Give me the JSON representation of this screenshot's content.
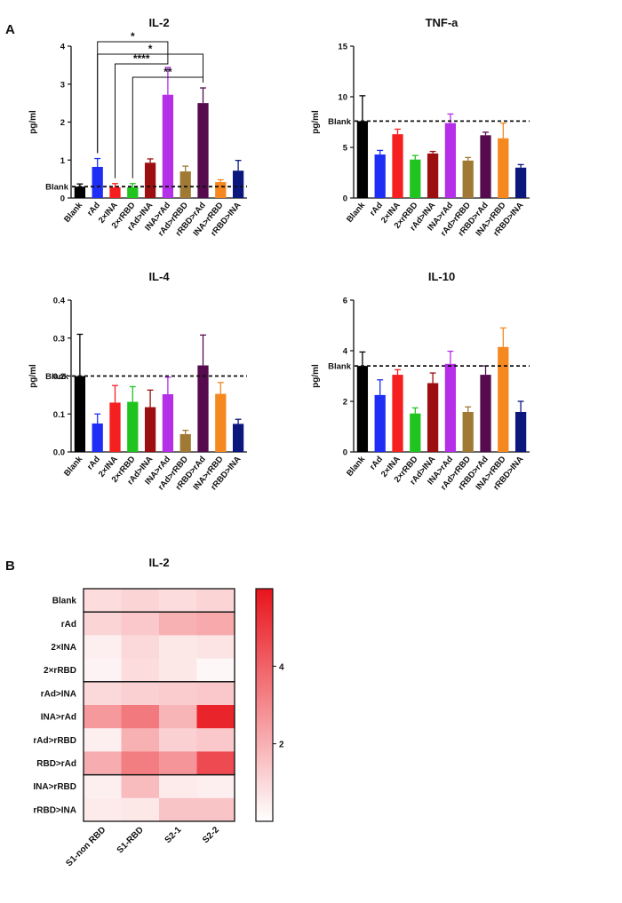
{
  "panel_a_label": "A",
  "panel_b_label": "B",
  "colors": {
    "blank": "#000000",
    "rAd": "#1f2ef5",
    "2xINA": "#f51f1f",
    "2xrRBD": "#1fc41f",
    "rAd>INA": "#9c0e10",
    "INA>rAd": "#b52ee8",
    "rAd>rRBD": "#a07a35",
    "rRBD>rAd": "#560b4f",
    "INA>rRBD": "#f5881f",
    "rRBD>INA": "#0c177d",
    "heatmap_high": "#e8141c",
    "heatmap_low": "#ffffff"
  },
  "chart_data": [
    {
      "type": "bar",
      "title": "IL-2",
      "ylabel": "pg/ml",
      "ylim": [
        0,
        4
      ],
      "yticks": [
        "0",
        "1",
        "2",
        "3",
        "4"
      ],
      "categories": [
        "Blank",
        "rAd",
        "2×INA",
        "2×rRBD",
        "rAd>INA",
        "INA>rAd",
        "rAd>rRBD",
        "rRBD>rAd",
        "INA>rRBD",
        "rRBD>INA"
      ],
      "values": [
        0.3,
        0.82,
        0.28,
        0.28,
        0.93,
        2.72,
        0.7,
        2.5,
        0.42,
        0.72
      ],
      "errors": [
        0.07,
        0.22,
        0.1,
        0.1,
        0.1,
        0.72,
        0.14,
        0.4,
        0.06,
        0.27
      ],
      "blank_line": 0.3,
      "blank_label": "Blank",
      "significance": [
        {
          "from": "rAd",
          "to": "INA>rAd",
          "label": "*"
        },
        {
          "from": "rAd",
          "to": "rRBD>rAd",
          "label": "*"
        },
        {
          "from": "2×INA",
          "to": "INA>rAd",
          "label": "****"
        },
        {
          "from": "2×rRBD",
          "to": "rRBD>rAd",
          "label": "**"
        }
      ]
    },
    {
      "type": "bar",
      "title": "TNF-a",
      "ylabel": "pg/ml",
      "ylim": [
        0,
        15
      ],
      "yticks": [
        "0",
        "5",
        "10",
        "15"
      ],
      "categories": [
        "Blank",
        "rAd",
        "2×INA",
        "2×rRBD",
        "rAd>INA",
        "INA>rAd",
        "rAd>rRBD",
        "rRBD>rAd",
        "INA>rRBD",
        "rRBD>INA"
      ],
      "values": [
        7.6,
        4.3,
        6.3,
        3.8,
        4.4,
        7.4,
        3.7,
        6.2,
        5.9,
        3.0
      ],
      "errors": [
        2.5,
        0.4,
        0.5,
        0.4,
        0.2,
        0.9,
        0.3,
        0.3,
        1.5,
        0.3
      ],
      "blank_line": 7.6,
      "blank_label": "Blank"
    },
    {
      "type": "bar",
      "title": "IL-4",
      "ylabel": "pg/ml",
      "ylim": [
        0,
        0.4
      ],
      "yticks": [
        "0.0",
        "0.1",
        "0.2",
        "0.3",
        "0.4"
      ],
      "categories": [
        "Blank",
        "rAd",
        "2×INA",
        "2×rRBD",
        "rAd>INA",
        "INA>rAd",
        "rAd>rRBD",
        "rRBD>rAd",
        "INA>rRBD",
        "rRBD>INA"
      ],
      "values": [
        0.2,
        0.075,
        0.13,
        0.132,
        0.118,
        0.152,
        0.047,
        0.228,
        0.153,
        0.074
      ],
      "errors": [
        0.11,
        0.025,
        0.045,
        0.04,
        0.045,
        0.045,
        0.01,
        0.08,
        0.03,
        0.012
      ],
      "blank_line": 0.2,
      "blank_label": "Blank"
    },
    {
      "type": "bar",
      "title": "IL-10",
      "ylabel": "pg/ml",
      "ylim": [
        0,
        6
      ],
      "yticks": [
        "0",
        "2",
        "4",
        "6"
      ],
      "categories": [
        "Blank",
        "rAd",
        "2×INA",
        "2×rRBD",
        "rAd>INA",
        "INA>rAd",
        "rAd>rRBD",
        "rRBD>rAd",
        "INA>rRBD",
        "rRBD>INA"
      ],
      "values": [
        3.4,
        2.25,
        3.05,
        1.52,
        2.72,
        3.48,
        1.58,
        3.05,
        4.15,
        1.58
      ],
      "errors": [
        0.55,
        0.6,
        0.2,
        0.22,
        0.4,
        0.5,
        0.2,
        0.35,
        0.75,
        0.42
      ],
      "blank_line": 3.4,
      "blank_label": "Blank"
    },
    {
      "type": "heatmap",
      "title": "IL-2",
      "rows": [
        "Blank",
        "rAd",
        "2×INA",
        "2×rRBD",
        "rAd>INA",
        "INA>rAd",
        "rAd>rRBD",
        "RBD>rAd",
        "INA>rRBD",
        "rRBD>INA"
      ],
      "columns": [
        "S1-non RBD",
        "S1-RBD",
        "S2-1",
        "S2-2"
      ],
      "values": [
        [
          0.9,
          1.1,
          0.9,
          1.1
        ],
        [
          1.1,
          1.4,
          2.0,
          2.2
        ],
        [
          0.4,
          1.0,
          0.6,
          0.7
        ],
        [
          0.3,
          0.9,
          0.6,
          0.2
        ],
        [
          1.0,
          1.2,
          1.3,
          1.4
        ],
        [
          2.6,
          3.4,
          1.9,
          5.6
        ],
        [
          0.4,
          2.0,
          1.2,
          1.4
        ],
        [
          2.1,
          3.3,
          2.7,
          4.6
        ],
        [
          0.4,
          1.7,
          0.5,
          0.4
        ],
        [
          0.5,
          0.6,
          1.5,
          1.5
        ]
      ],
      "group_borders_after_rows": [
        0,
        3,
        7
      ],
      "colorbar_range": [
        0,
        6
      ],
      "colorbar_ticks": [
        "2",
        "4"
      ]
    }
  ]
}
